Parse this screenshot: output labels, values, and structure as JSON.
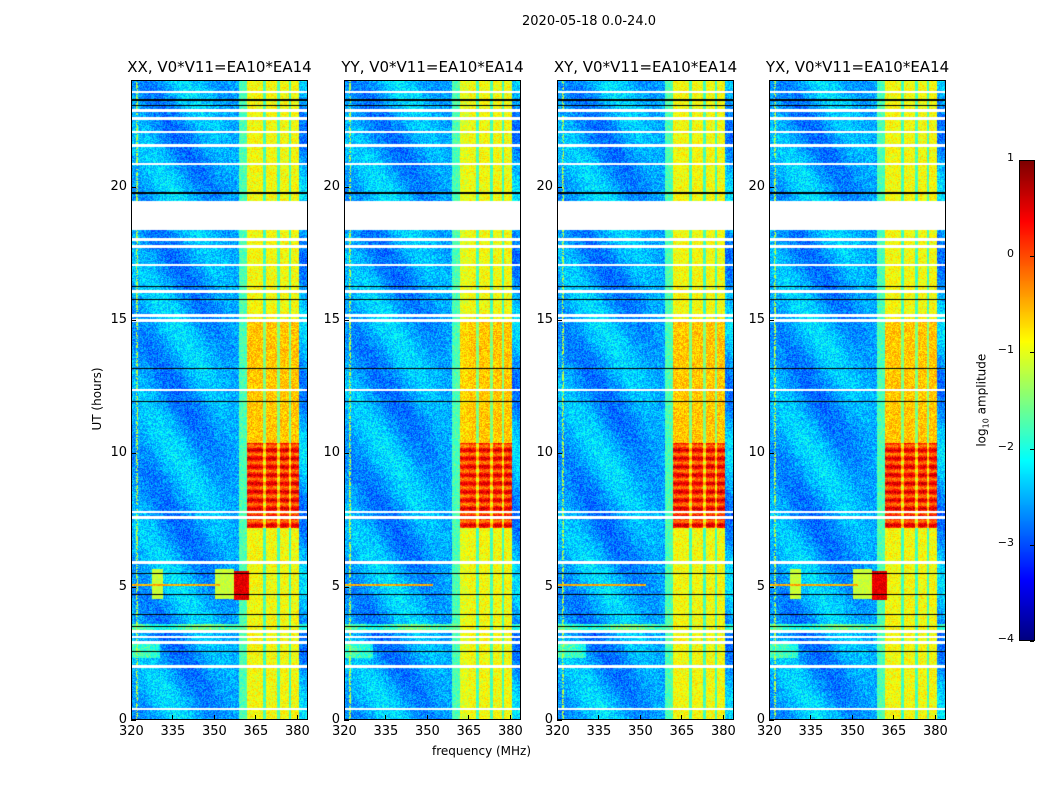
{
  "suptitle": "2020-05-18 0.0-24.0",
  "chart_data": {
    "type": "heatmap",
    "title": "2020-05-18 0.0-24.0",
    "xlabel": "frequency (MHz)",
    "ylabel": "UT (hours)",
    "xlim": [
      320,
      384
    ],
    "ylim": [
      0,
      24
    ],
    "xticks": [
      "320",
      "335",
      "350",
      "365",
      "380"
    ],
    "yticks": [
      "0",
      "5",
      "10",
      "15",
      "20"
    ],
    "xtick_values": [
      320,
      335,
      350,
      365,
      380
    ],
    "ytick_values": [
      0,
      5,
      10,
      15,
      20
    ],
    "panels": [
      {
        "title": "XX, V0*V11=EA10*EA14",
        "rfi_block": true
      },
      {
        "title": "YY, V0*V11=EA10*EA14",
        "rfi_block": false
      },
      {
        "title": "XY, V0*V11=EA10*EA14",
        "rfi_block": false
      },
      {
        "title": "YX, V0*V11=EA10*EA14",
        "rfi_block": true
      }
    ],
    "colorbar": {
      "label_prefix": "log",
      "label_sub": "10",
      "label_suffix": " amplitude",
      "range": [
        -4,
        1
      ],
      "ticks": [
        "1",
        "0",
        "−1",
        "−2",
        "−3",
        "−4"
      ],
      "tick_values": [
        1,
        0,
        -1,
        -2,
        -3,
        -4
      ],
      "colormap": "jet"
    },
    "strong_band_mhz": [
      362,
      381
    ],
    "strong_band_peak_hours": [
      7.2,
      10.4
    ],
    "flagged_hours": [
      [
        18.4,
        19.5
      ]
    ]
  }
}
